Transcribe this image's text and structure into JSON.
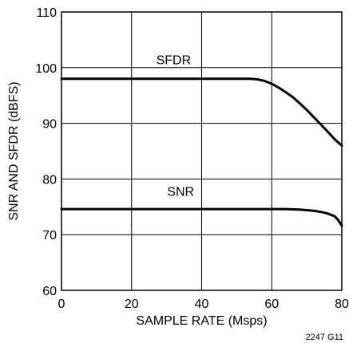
{
  "chart_data": {
    "type": "line",
    "title": "",
    "xlabel": "SAMPLE RATE (Msps)",
    "ylabel": "SNR AND SFDR (dBFS)",
    "xlim": [
      0,
      80
    ],
    "ylim": [
      60,
      110
    ],
    "xticks": [
      0,
      20,
      40,
      60,
      80
    ],
    "yticks": [
      60,
      70,
      80,
      90,
      100,
      110
    ],
    "grid": true,
    "series": [
      {
        "name": "SFDR",
        "x": [
          0,
          10,
          20,
          30,
          40,
          50,
          54,
          56,
          58,
          60,
          62,
          64,
          66,
          68,
          70,
          72,
          74,
          76,
          78,
          80
        ],
        "y": [
          98,
          98,
          98,
          98,
          98,
          98,
          98,
          97.9,
          97.6,
          97.1,
          96.4,
          95.6,
          94.7,
          93.6,
          92.4,
          91.1,
          89.8,
          88.5,
          87.1,
          86
        ],
        "label_at": [
          32,
          100.6
        ]
      },
      {
        "name": "SNR",
        "x": [
          0,
          10,
          20,
          30,
          40,
          50,
          60,
          64,
          68,
          70,
          72,
          74,
          76,
          78,
          79,
          80
        ],
        "y": [
          74.6,
          74.6,
          74.6,
          74.6,
          74.6,
          74.6,
          74.6,
          74.6,
          74.5,
          74.4,
          74.3,
          74.1,
          73.8,
          73.3,
          72.6,
          71.6
        ],
        "label_at": [
          34,
          77
        ]
      }
    ],
    "figure_id": "2247 G11"
  }
}
